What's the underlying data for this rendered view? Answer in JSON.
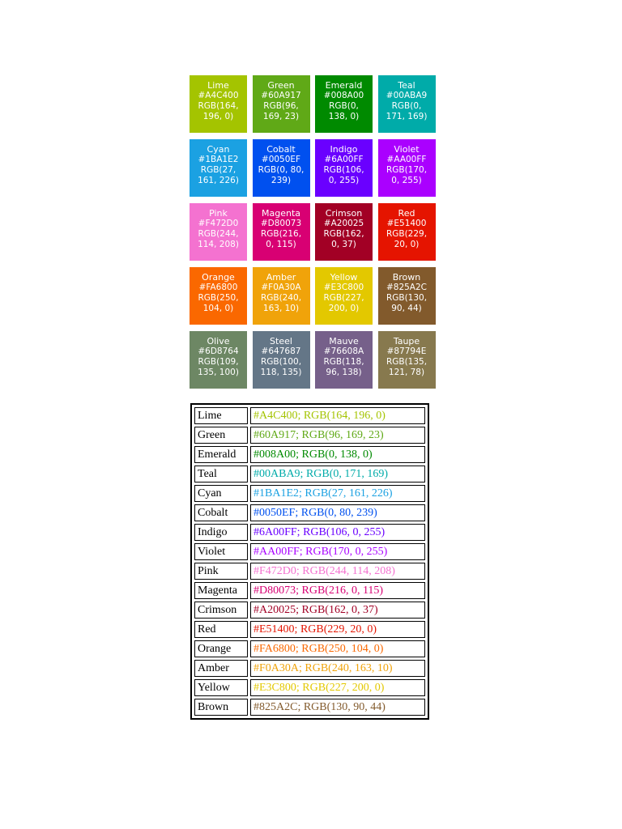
{
  "swatches": [
    {
      "name": "Lime",
      "hex": "#A4C400",
      "rgb1": "RGB(164,",
      "rgb2": "196, 0)",
      "color": "#A4C400"
    },
    {
      "name": "Green",
      "hex": "#60A917",
      "rgb1": "RGB(96,",
      "rgb2": "169, 23)",
      "color": "#60A917"
    },
    {
      "name": "Emerald",
      "hex": "#008A00",
      "rgb1": "RGB(0,",
      "rgb2": "138, 0)",
      "color": "#008A00"
    },
    {
      "name": "Teal",
      "hex": "#00ABA9",
      "rgb1": "RGB(0,",
      "rgb2": "171, 169)",
      "color": "#00ABA9"
    },
    {
      "name": "Cyan",
      "hex": "#1BA1E2",
      "rgb1": "RGB(27,",
      "rgb2": "161, 226)",
      "color": "#1BA1E2"
    },
    {
      "name": "Cobalt",
      "hex": "#0050EF",
      "rgb1": "RGB(0, 80,",
      "rgb2": "239)",
      "color": "#0050EF"
    },
    {
      "name": "Indigo",
      "hex": "#6A00FF",
      "rgb1": "RGB(106,",
      "rgb2": "0, 255)",
      "color": "#6A00FF"
    },
    {
      "name": "Violet",
      "hex": "#AA00FF",
      "rgb1": "RGB(170,",
      "rgb2": "0, 255)",
      "color": "#AA00FF"
    },
    {
      "name": "Pink",
      "hex": "#F472D0",
      "rgb1": "RGB(244,",
      "rgb2": "114, 208)",
      "color": "#F472D0"
    },
    {
      "name": "Magenta",
      "hex": "#D80073",
      "rgb1": "RGB(216,",
      "rgb2": "0, 115)",
      "color": "#D80073"
    },
    {
      "name": "Crimson",
      "hex": "#A20025",
      "rgb1": "RGB(162,",
      "rgb2": "0, 37)",
      "color": "#A20025"
    },
    {
      "name": "Red",
      "hex": "#E51400",
      "rgb1": "RGB(229,",
      "rgb2": "20, 0)",
      "color": "#E51400"
    },
    {
      "name": "Orange",
      "hex": "#FA6800",
      "rgb1": "RGB(250,",
      "rgb2": "104, 0)",
      "color": "#FA6800"
    },
    {
      "name": "Amber",
      "hex": "#F0A30A",
      "rgb1": "RGB(240,",
      "rgb2": "163, 10)",
      "color": "#F0A30A"
    },
    {
      "name": "Yellow",
      "hex": "#E3C800",
      "rgb1": "RGB(227,",
      "rgb2": "200, 0)",
      "color": "#E3C800"
    },
    {
      "name": "Brown",
      "hex": "#825A2C",
      "rgb1": "RGB(130,",
      "rgb2": "90, 44)",
      "color": "#825A2C"
    },
    {
      "name": "Olive",
      "hex": "#6D8764",
      "rgb1": "RGB(109,",
      "rgb2": "135, 100)",
      "color": "#6D8764"
    },
    {
      "name": "Steel",
      "hex": "#647687",
      "rgb1": "RGB(100,",
      "rgb2": "118, 135)",
      "color": "#647687"
    },
    {
      "name": "Mauve",
      "hex": "#76608A",
      "rgb1": "RGB(118,",
      "rgb2": "96, 138)",
      "color": "#76608A"
    },
    {
      "name": "Taupe",
      "hex": "#87794E",
      "rgb1": "RGB(135,",
      "rgb2": "121, 78)",
      "color": "#87794E"
    }
  ],
  "table_rows": [
    {
      "name": "Lime",
      "value": "#A4C400; RGB(164, 196, 0)",
      "color": "#A4C400"
    },
    {
      "name": "Green",
      "value": "#60A917; RGB(96, 169, 23)",
      "color": "#60A917"
    },
    {
      "name": "Emerald",
      "value": "#008A00; RGB(0, 138, 0)",
      "color": "#008A00"
    },
    {
      "name": "Teal",
      "value": "#00ABA9; RGB(0, 171, 169)",
      "color": "#00ABA9"
    },
    {
      "name": "Cyan",
      "value": "#1BA1E2; RGB(27, 161, 226)",
      "color": "#1BA1E2"
    },
    {
      "name": "Cobalt",
      "value": "#0050EF; RGB(0, 80, 239)",
      "color": "#0050EF"
    },
    {
      "name": "Indigo",
      "value": "#6A00FF; RGB(106, 0, 255)",
      "color": "#6A00FF"
    },
    {
      "name": "Violet",
      "value": "#AA00FF; RGB(170, 0, 255)",
      "color": "#AA00FF"
    },
    {
      "name": "Pink",
      "value": "#F472D0; RGB(244, 114, 208)",
      "color": "#F472D0"
    },
    {
      "name": "Magenta",
      "value": "#D80073; RGB(216, 0, 115)",
      "color": "#D80073"
    },
    {
      "name": "Crimson",
      "value": "#A20025; RGB(162, 0, 37)",
      "color": "#A20025"
    },
    {
      "name": "Red",
      "value": "#E51400; RGB(229, 20, 0)",
      "color": "#E51400"
    },
    {
      "name": "Orange",
      "value": "#FA6800; RGB(250, 104, 0)",
      "color": "#FA6800"
    },
    {
      "name": "Amber",
      "value": "#F0A30A; RGB(240, 163, 10)",
      "color": "#F0A30A"
    },
    {
      "name": "Yellow",
      "value": "#E3C800; RGB(227, 200, 0)",
      "color": "#E3C800"
    },
    {
      "name": "Brown",
      "value": "#825A2C; RGB(130, 90, 44)",
      "color": "#825A2C"
    }
  ]
}
